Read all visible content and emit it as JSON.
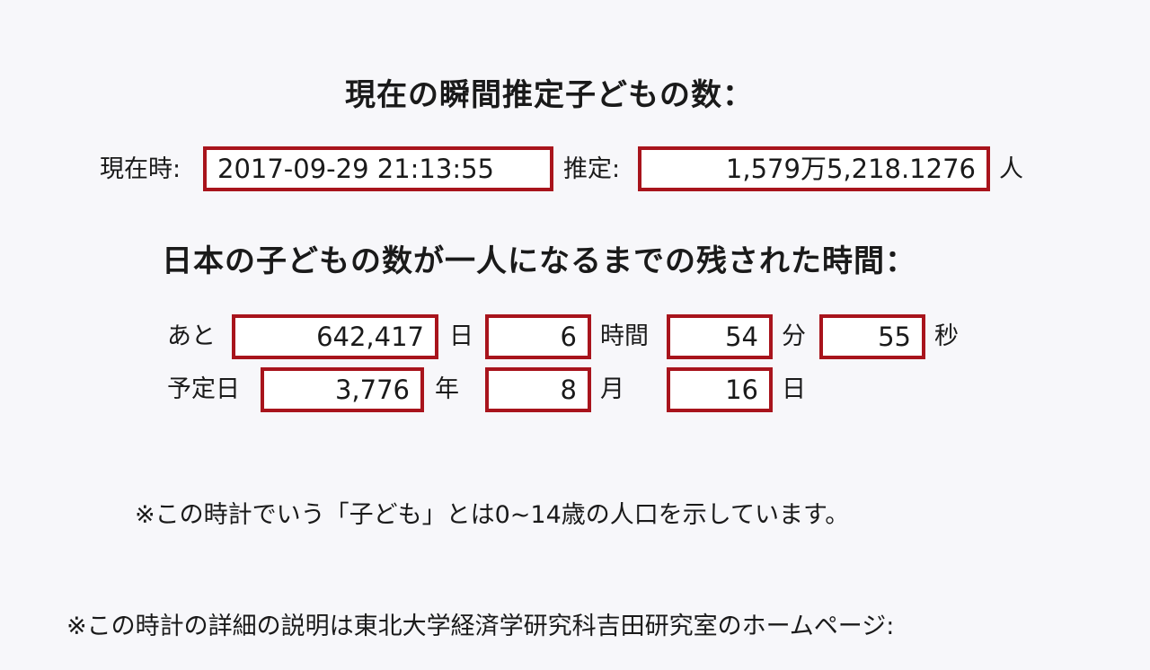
{
  "headings": {
    "current_estimate": "現在の瞬間推定子どもの数：",
    "remaining_time": "日本の子どもの数が一人になるまでの残された時間："
  },
  "current": {
    "time_label": "現在時:",
    "time_value": "2017-09-29 21:13:55",
    "estimate_label": "推定:",
    "estimate_value": "1,579万5,218.1276",
    "estimate_unit": "人"
  },
  "remaining": {
    "prefix": "あと",
    "days": "642,417",
    "days_unit": "日",
    "hours": "6",
    "hours_unit": "時間",
    "minutes": "54",
    "minutes_unit": "分",
    "seconds": "55",
    "seconds_unit": "秒"
  },
  "scheduled": {
    "prefix": "予定日",
    "year": "3,776",
    "year_unit": "年",
    "month": "8",
    "month_unit": "月",
    "day": "16",
    "day_unit": "日"
  },
  "notes": {
    "definition": "※この時計でいう「子ども」とは0~14歳の人口を示しています。",
    "details": "※この時計の詳細の説明は東北大学経済学研究科吉田研究室のホームページ:"
  }
}
